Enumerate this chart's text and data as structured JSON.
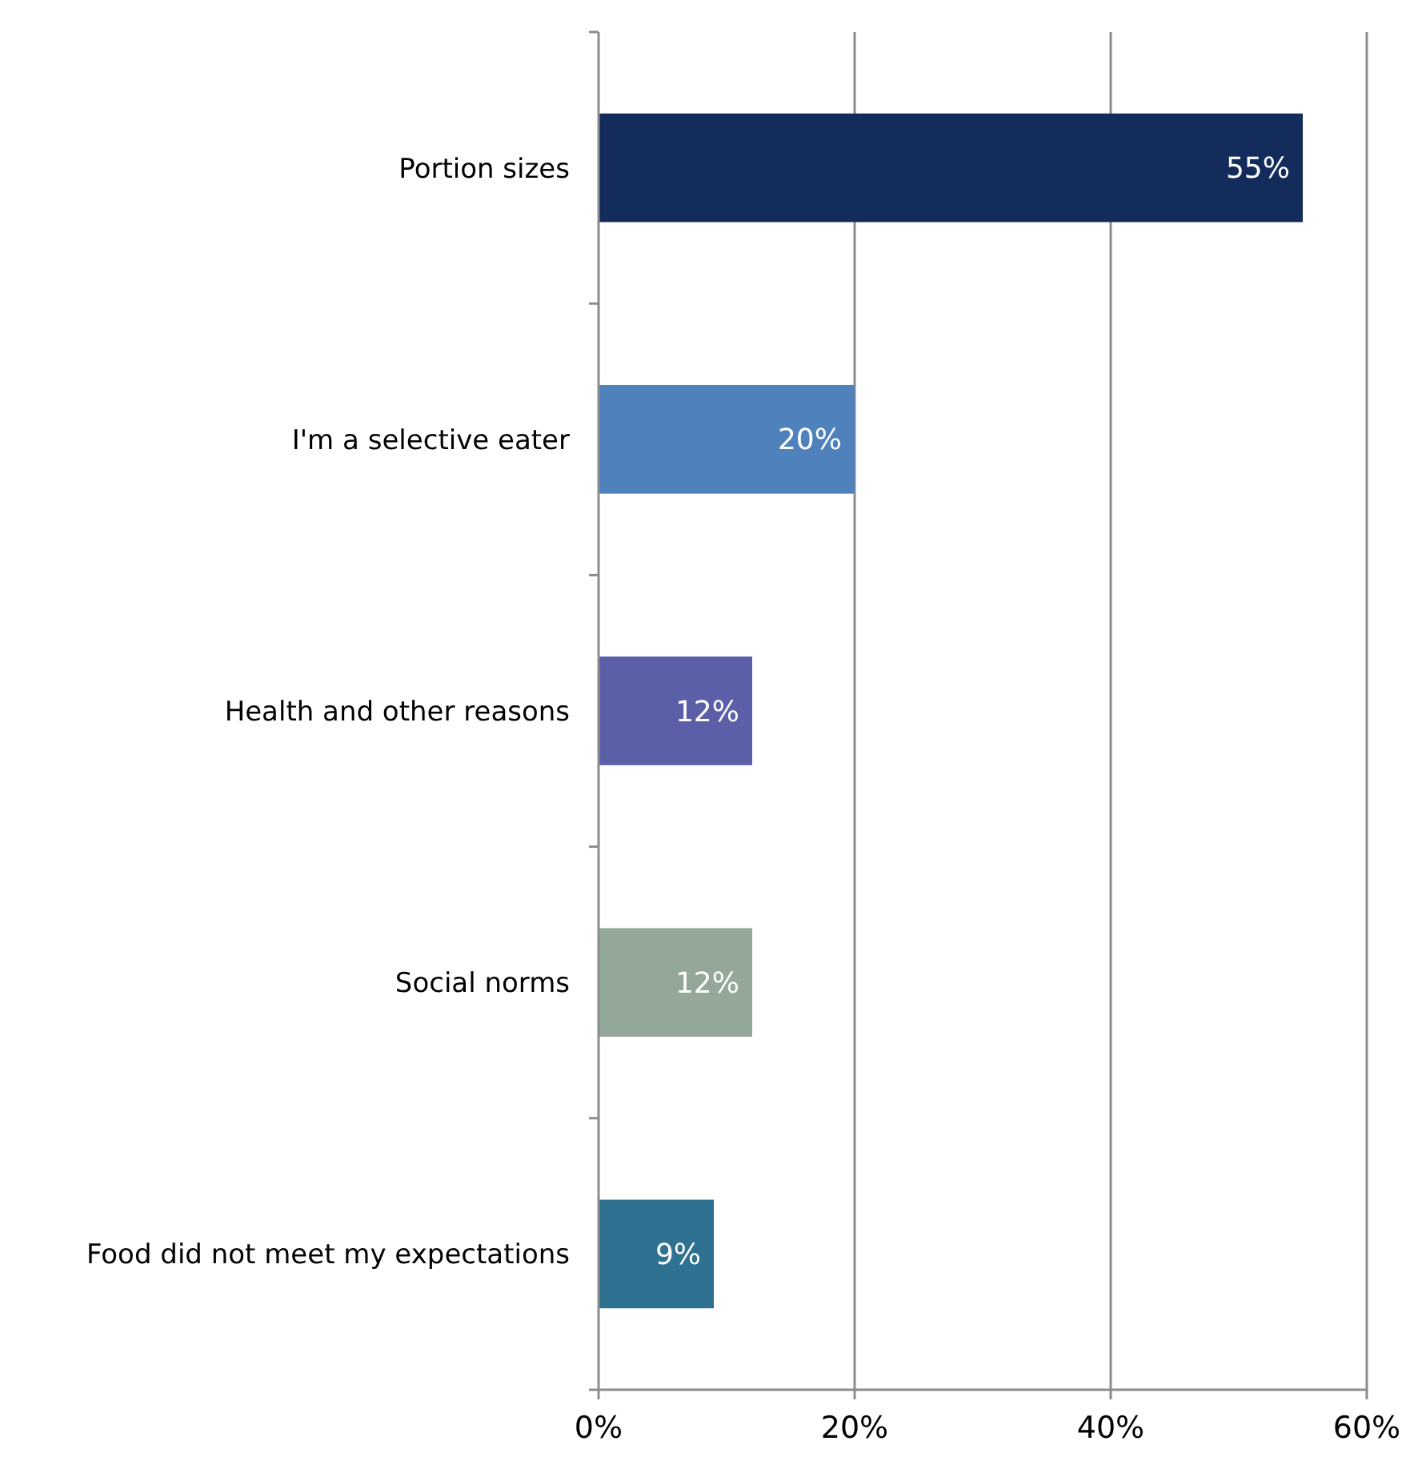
{
  "chart_data": {
    "type": "bar",
    "orientation": "horizontal",
    "categories": [
      "Portion sizes",
      "I'm a selective eater",
      "Health and other reasons",
      "Social norms",
      "Food did not meet my expectations"
    ],
    "values": [
      55,
      20,
      12,
      12,
      9
    ],
    "colors": [
      "#132c5b",
      "#4f81bd",
      "#5b5fa8",
      "#93a899",
      "#2e7191"
    ],
    "value_labels": [
      "55%",
      "20%",
      "12%",
      "12%",
      "9%"
    ],
    "xlim": [
      0,
      60
    ],
    "xticks": [
      {
        "value": 0,
        "label": "0%"
      },
      {
        "value": 20,
        "label": "20%"
      },
      {
        "value": 40,
        "label": "40%"
      },
      {
        "value": 60,
        "label": "60%"
      }
    ],
    "grid": "x"
  }
}
